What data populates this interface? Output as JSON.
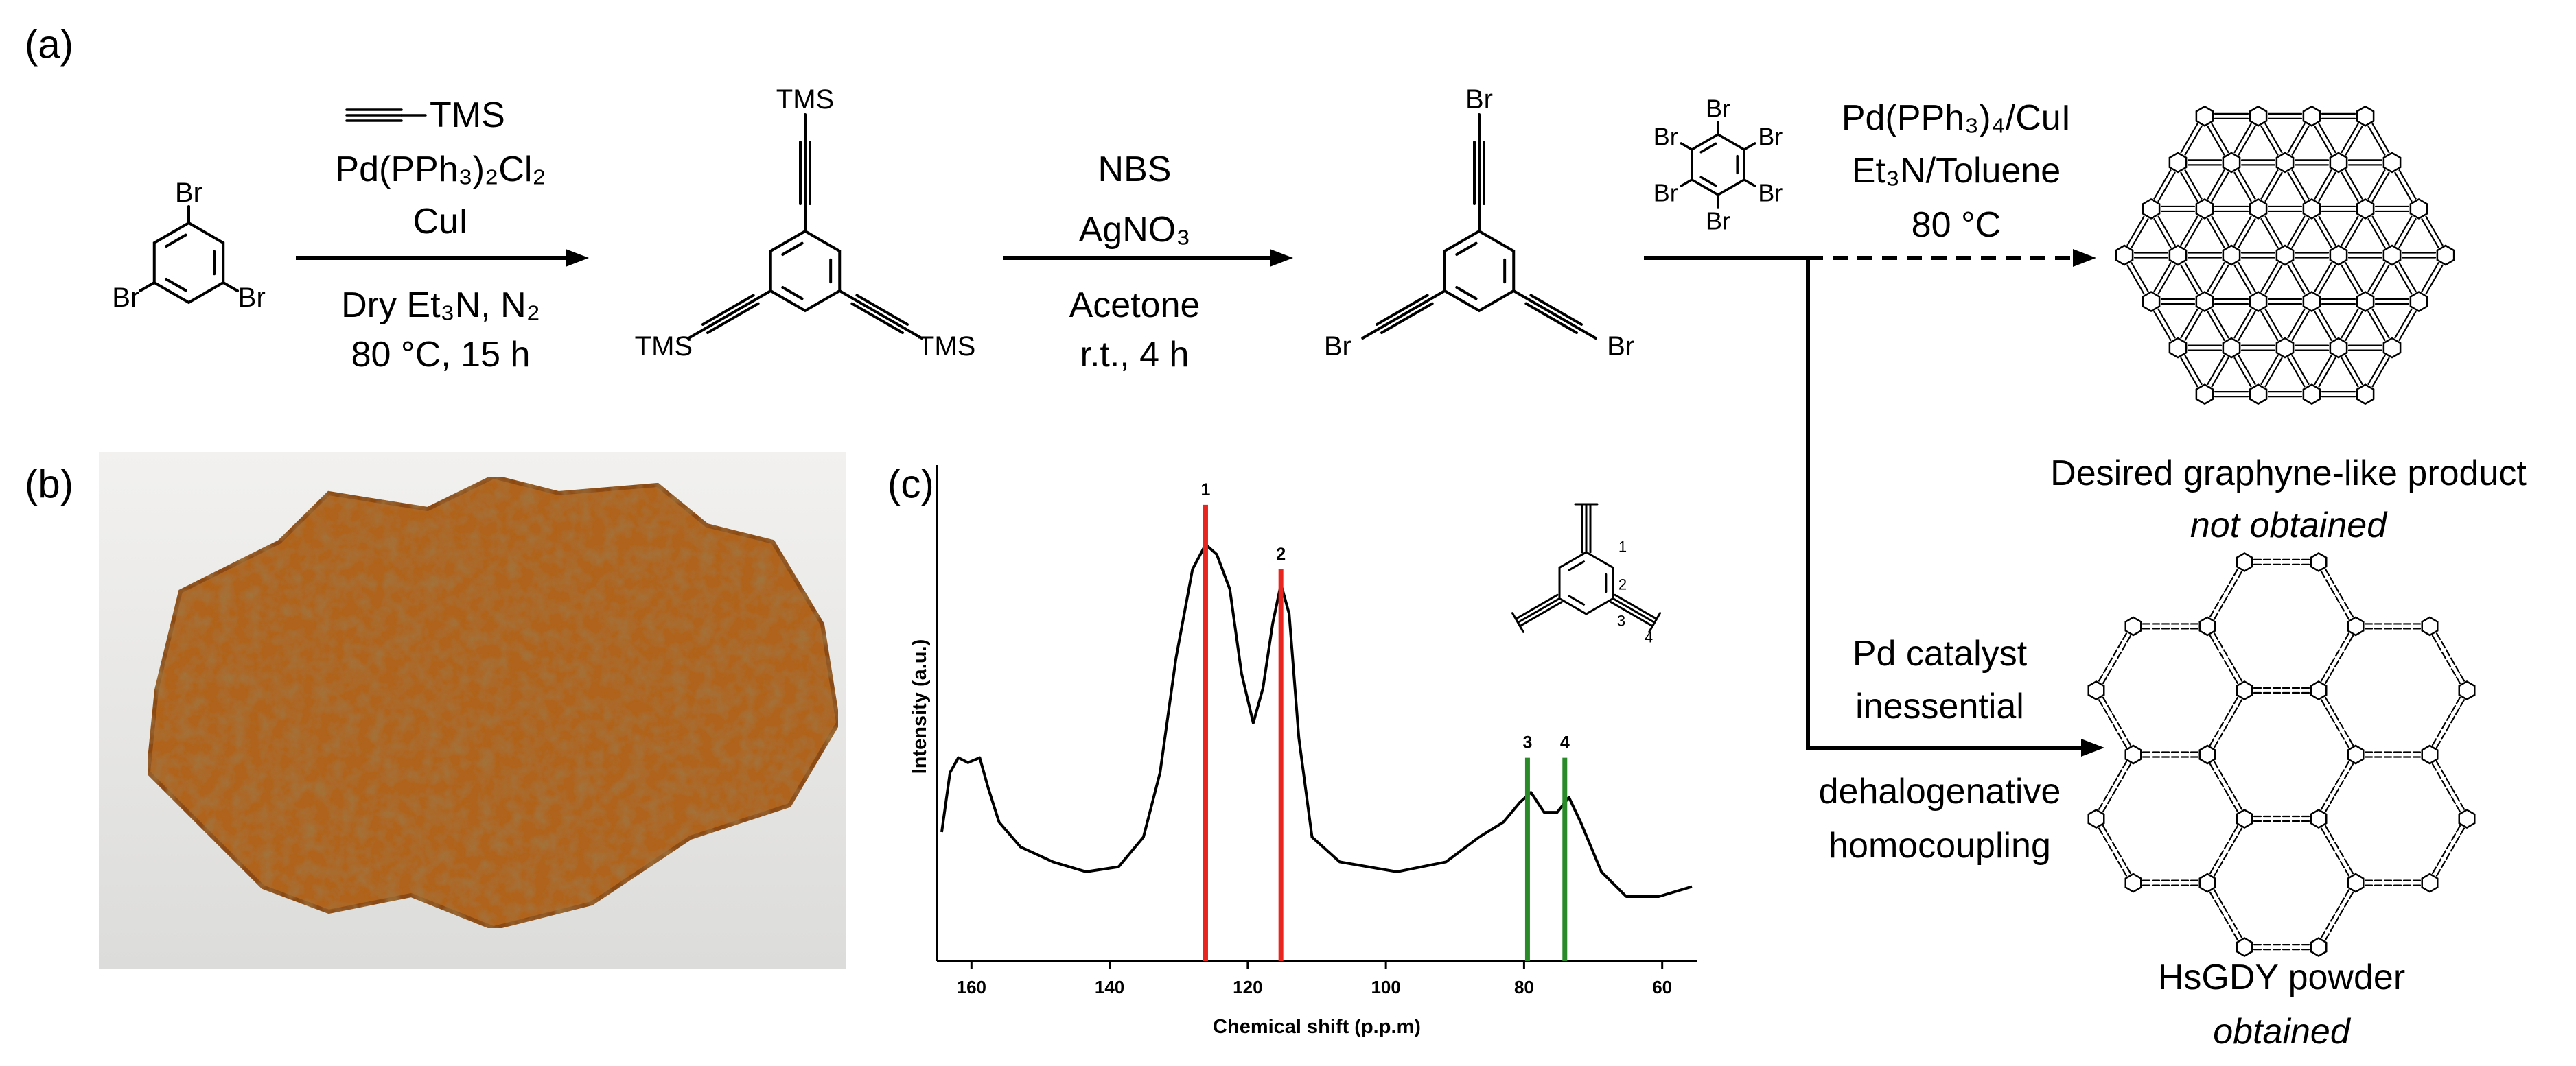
{
  "panel_labels": {
    "a": "(a)",
    "b": "(b)",
    "c": "(c)"
  },
  "scheme": {
    "molecules": [
      {
        "labels": [
          "Br",
          "Br",
          "Br"
        ]
      },
      {
        "labels": [
          "TMS",
          "TMS",
          "TMS"
        ]
      },
      {
        "labels": [
          "Br",
          "Br",
          "Br"
        ]
      },
      {
        "labels": [
          "Br",
          "Br",
          "Br",
          "Br",
          "Br",
          "Br"
        ]
      }
    ],
    "steps": [
      {
        "reagents_above": [
          "TMS",
          "Pd(PPh₃)₂Cl₂",
          "CuI"
        ],
        "conditions_below": [
          "Dry Et₃N, N₂",
          "80 °C, 15 h"
        ]
      },
      {
        "reagents_above": [
          "NBS",
          "AgNO₃"
        ],
        "conditions_below": [
          "Acetone",
          "r.t., 4 h"
        ]
      },
      {
        "reagents_above": [
          "Pd(PPh₃)₄/CuI",
          "Et₃N/Toluene",
          "80 °C"
        ]
      },
      {
        "reagents_above": [
          "Pd catalyst",
          "inessential"
        ],
        "conditions_below": [
          "dehalogenative",
          "homocoupling"
        ]
      }
    ],
    "products": [
      {
        "name": "Desired graphyne-like product",
        "status": "not obtained"
      },
      {
        "name": "HsGDY powder",
        "status": "obtained"
      }
    ]
  },
  "chart_data": {
    "type": "line",
    "xlabel": "Chemical shift (p.p.m)",
    "ylabel": "Intensity (a.u.)",
    "x": [
      164.3,
      163.1,
      161.9,
      160.5,
      158.8,
      157.6,
      156.0,
      152.9,
      148.2,
      143.4,
      138.7,
      135.1,
      132.7,
      130.4,
      128.0,
      126.1,
      124.5,
      122.6,
      120.9,
      119.2,
      117.8,
      116.4,
      115.2,
      114.0,
      112.6,
      110.7,
      106.7,
      98.4,
      91.3,
      86.5,
      83.0,
      80.6,
      79.0,
      77.1,
      75.2,
      73.5,
      71.8,
      68.8,
      65.2,
      60.5,
      55.7
    ],
    "values": [
      26,
      38,
      41,
      40,
      41,
      35,
      28,
      23,
      20,
      18,
      19,
      25,
      38,
      61,
      79,
      84,
      82,
      75,
      58,
      48,
      55,
      68,
      76,
      70,
      45,
      25,
      20,
      18,
      20,
      25,
      28,
      32,
      34,
      30,
      30,
      33,
      28,
      18,
      13,
      13,
      15
    ],
    "color": "#000000",
    "xlim": [
      165,
      55
    ],
    "xticks": [
      160,
      140,
      120,
      100,
      80,
      60
    ],
    "ylim": [
      0,
      100
    ],
    "peaks": {
      "labels": [
        "1",
        "2",
        "3",
        "4"
      ],
      "x": [
        126.1,
        115.2,
        79.5,
        74.1
      ],
      "heights": [
        92,
        79,
        41,
        41
      ],
      "colors": [
        "#e8251f",
        "#e8251f",
        "#2a8a2a",
        "#2a8a2a"
      ]
    }
  }
}
